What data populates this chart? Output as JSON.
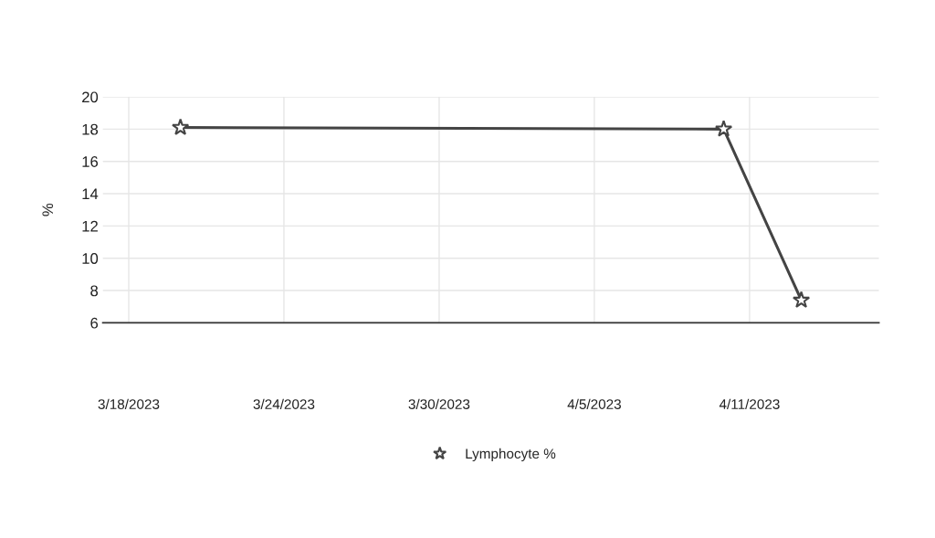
{
  "chart_data": {
    "type": "line",
    "ylabel": "%",
    "x": [
      "2023-03-20",
      "2023-04-10",
      "2023-04-13"
    ],
    "series": [
      {
        "name": "Lymphocyte %",
        "color": "#444444",
        "values": [
          18.1,
          18.0,
          7.4
        ]
      }
    ],
    "xlim": [
      "2023-03-17",
      "2023-04-16"
    ],
    "xticks": [
      {
        "value": "2023-03-18",
        "label": "3/18/2023"
      },
      {
        "value": "2023-03-24",
        "label": "3/24/2023"
      },
      {
        "value": "2023-03-30",
        "label": "3/30/2023"
      },
      {
        "value": "2023-04-05",
        "label": "4/5/2023"
      },
      {
        "value": "2023-04-11",
        "label": "4/11/2023"
      }
    ],
    "ylim": [
      6,
      20
    ],
    "yticks": [
      6,
      8,
      10,
      12,
      14,
      16,
      18,
      20
    ],
    "grid": true,
    "legend": "bottom",
    "marker": "star",
    "line_style": "solid"
  }
}
